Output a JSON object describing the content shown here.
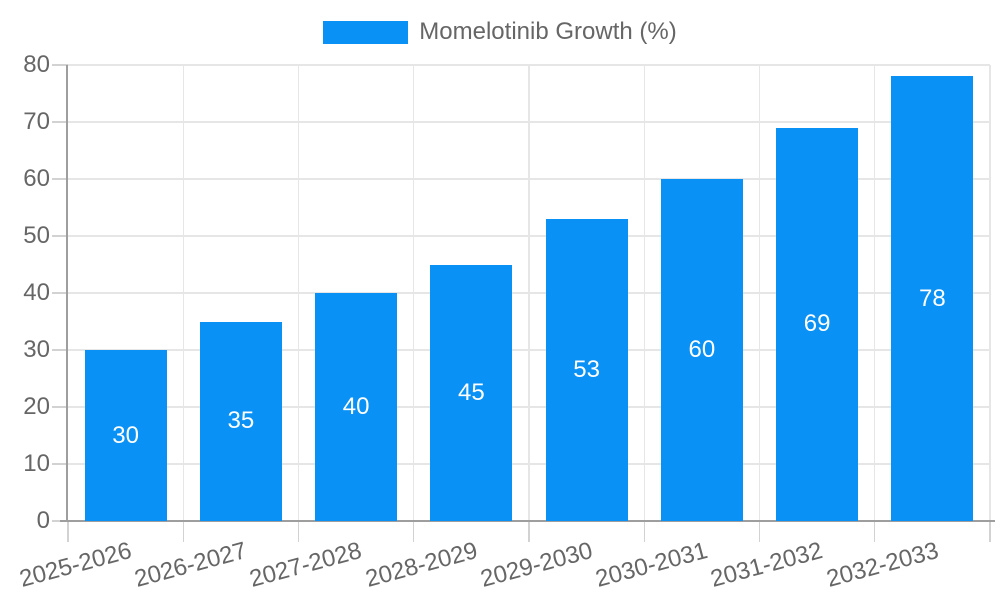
{
  "chart_data": {
    "type": "bar",
    "title": "",
    "legend": {
      "label": "Momelotinib Growth (%)",
      "position": "top"
    },
    "categories": [
      "2025-2026",
      "2026-2027",
      "2027-2028",
      "2028-2029",
      "2029-2030",
      "2030-2031",
      "2031-2032",
      "2032-2033"
    ],
    "series": [
      {
        "name": "Momelotinib Growth (%)",
        "values": [
          30,
          35,
          40,
          45,
          53,
          60,
          69,
          78
        ]
      }
    ],
    "ylim": [
      0,
      80
    ],
    "yticks": [
      0,
      10,
      20,
      30,
      40,
      50,
      60,
      70,
      80
    ],
    "grid": true,
    "x_label_rotation_deg": -15,
    "colors": {
      "bar": "#0a91f5",
      "bar_label": "#ffffff",
      "grid": "#e6e6e6",
      "tick": "#d2d2d2",
      "axis": "#9e9e9e",
      "text": "#666666",
      "background": "#ffffff"
    }
  }
}
